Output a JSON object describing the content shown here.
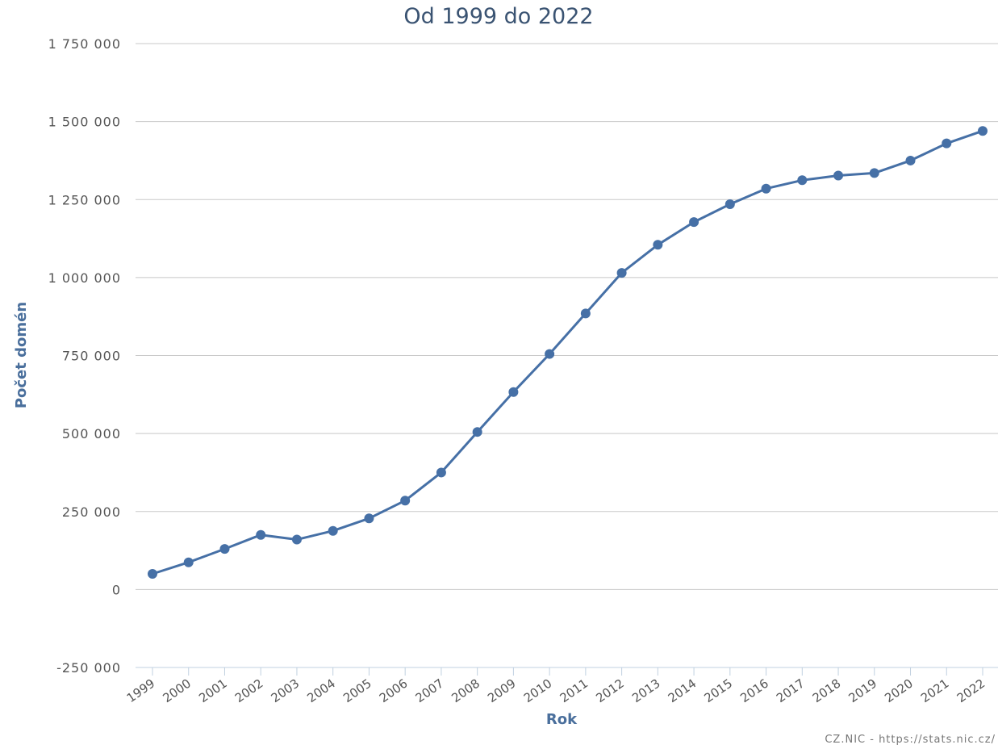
{
  "chart_data": {
    "type": "line",
    "title": "Od 1999 do 2022",
    "xlabel": "Rok",
    "ylabel": "Počet domén",
    "credit": "CZ.NIC - https://stats.nic.cz/",
    "ylim": [
      -250000,
      1750000
    ],
    "yticks": [
      -250000,
      0,
      250000,
      500000,
      750000,
      1000000,
      1250000,
      1500000,
      1750000
    ],
    "ytick_labels": [
      "-250 000",
      "0",
      "250 000",
      "500 000",
      "750 000",
      "1 000 000",
      "1 250 000",
      "1 500 000",
      "1 750 000"
    ],
    "grid": true,
    "legend": "none",
    "categories": [
      "1999",
      "2000",
      "2001",
      "2002",
      "2003",
      "2004",
      "2005",
      "2006",
      "2007",
      "2008",
      "2009",
      "2010",
      "2011",
      "2012",
      "2013",
      "2014",
      "2015",
      "2016",
      "2017",
      "2018",
      "2019",
      "2020",
      "2021",
      "2022"
    ],
    "series": [
      {
        "color": "#4670a6",
        "values": [
          50000,
          87000,
          130000,
          175000,
          160000,
          188000,
          228000,
          285000,
          375000,
          505000,
          633000,
          755000,
          885000,
          1015000,
          1105000,
          1178000,
          1235000,
          1285000,
          1312000,
          1327000,
          1335000,
          1375000,
          1430000,
          1470000
        ]
      }
    ]
  }
}
